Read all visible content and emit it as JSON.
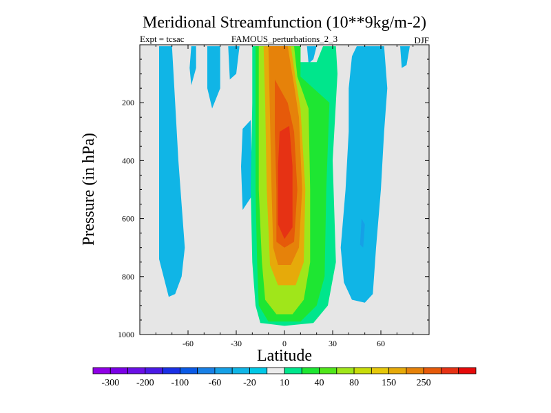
{
  "chart_data": {
    "type": "contour",
    "title": "Meridional Streamfunction (10**9kg/m-2)",
    "subtitle_left": "Expt = tcsac",
    "subtitle_center": "FAMOUS_perturbations_2_3",
    "subtitle_right": "DJF",
    "xlabel": "Latitude",
    "ylabel": "Pressure (in hPa)",
    "xlim": [
      -90,
      90
    ],
    "ylim": [
      1000,
      0
    ],
    "xticks": [
      -60,
      -30,
      0,
      30,
      60
    ],
    "xtick_labels": [
      "-60",
      "-30",
      "0",
      "30",
      "60"
    ],
    "yticks": [
      200,
      400,
      600,
      800,
      1000
    ],
    "ytick_labels": [
      "200",
      "400",
      "600",
      "800",
      "1000"
    ],
    "background_color": "#e6e6e6",
    "colorbar": {
      "colors": [
        "#8f00e6",
        "#7a00e6",
        "#6a10e6",
        "#4a1ae6",
        "#1a30e6",
        "#0b5ae6",
        "#1980e6",
        "#16a0e6",
        "#10b5e6",
        "#00c8e6",
        "#ebebeb",
        "#00e68c",
        "#1ee632",
        "#50e61a",
        "#a0e61a",
        "#c8dc0a",
        "#e6c80a",
        "#e6aa0a",
        "#e6820a",
        "#e65a0a",
        "#e63214",
        "#e60a0a"
      ],
      "labels": [
        "-300",
        "-200",
        "-100",
        "-60",
        "-20",
        "10",
        "40",
        "80",
        "150",
        "250"
      ]
    },
    "contour_regions": [
      {
        "name": "southern-hemisphere-cell",
        "sign": "negative",
        "level": "-20",
        "polygon": [
          [
            -78,
            5
          ],
          [
            -70,
            5
          ],
          [
            -68,
            200
          ],
          [
            -66,
            400
          ],
          [
            -62,
            700
          ],
          [
            -64,
            800
          ],
          [
            -68,
            860
          ],
          [
            -72,
            870
          ],
          [
            -78,
            740
          ],
          [
            -78,
            300
          ]
        ]
      },
      {
        "name": "southern-upper-filament",
        "sign": "negative",
        "level": "-20",
        "polygon": [
          [
            -58,
            5
          ],
          [
            -55,
            5
          ],
          [
            -55,
            80
          ],
          [
            -58,
            140
          ],
          [
            -59,
            80
          ]
        ]
      },
      {
        "name": "upper-filament-a",
        "sign": "negative",
        "level": "-20",
        "polygon": [
          [
            -48,
            5
          ],
          [
            -40,
            5
          ],
          [
            -40,
            150
          ],
          [
            -45,
            220
          ],
          [
            -48,
            150
          ]
        ]
      },
      {
        "name": "upper-filament-b",
        "sign": "negative",
        "level": "-20",
        "polygon": [
          [
            -35,
            5
          ],
          [
            -28,
            5
          ],
          [
            -30,
            100
          ],
          [
            -34,
            120
          ]
        ]
      },
      {
        "name": "mid-filament",
        "sign": "negative",
        "level": "-20",
        "polygon": [
          [
            -26,
            290
          ],
          [
            -21,
            260
          ],
          [
            -20,
            520
          ],
          [
            -26,
            570
          ],
          [
            -27,
            420
          ]
        ]
      },
      {
        "name": "northern-upper-filament",
        "sign": "negative",
        "level": "-20",
        "polygon": [
          [
            14,
            5
          ],
          [
            20,
            5
          ],
          [
            18,
            50
          ],
          [
            15,
            65
          ]
        ]
      },
      {
        "name": "far-north-filament",
        "sign": "negative",
        "level": "-20",
        "polygon": [
          [
            72,
            5
          ],
          [
            78,
            5
          ],
          [
            76,
            70
          ],
          [
            73,
            80
          ]
        ]
      },
      {
        "name": "northern-hemisphere-cell",
        "sign": "negative",
        "level": "-20",
        "polygon": [
          [
            45,
            5
          ],
          [
            62,
            5
          ],
          [
            64,
            150
          ],
          [
            62,
            300
          ],
          [
            60,
            500
          ],
          [
            57,
            700
          ],
          [
            55,
            860
          ],
          [
            50,
            890
          ],
          [
            42,
            880
          ],
          [
            37,
            820
          ],
          [
            35,
            700
          ],
          [
            38,
            500
          ],
          [
            40,
            300
          ],
          [
            40,
            150
          ],
          [
            42,
            40
          ]
        ]
      },
      {
        "name": "northern-cell-core",
        "sign": "negative",
        "level": "-60",
        "polygon": [
          [
            48,
            600
          ],
          [
            50,
            620
          ],
          [
            49,
            700
          ],
          [
            47,
            690
          ]
        ]
      },
      {
        "name": "hadley-cell",
        "sign": "positive",
        "level": "10",
        "polygon": [
          [
            -20,
            5
          ],
          [
            10,
            5
          ],
          [
            10,
            60
          ],
          [
            20,
            60
          ],
          [
            24,
            5
          ],
          [
            32,
            5
          ],
          [
            33,
            100
          ],
          [
            30,
            400
          ],
          [
            32,
            750
          ],
          [
            27,
            900
          ],
          [
            18,
            960
          ],
          [
            0,
            970
          ],
          [
            -15,
            960
          ],
          [
            -18,
            900
          ],
          [
            -20,
            750
          ],
          [
            -21,
            500
          ],
          [
            -20,
            200
          ]
        ]
      },
      {
        "name": "hadley-40",
        "sign": "positive",
        "level": "40",
        "polygon": [
          [
            -18,
            5
          ],
          [
            10,
            5
          ],
          [
            10,
            110
          ],
          [
            28,
            200
          ],
          [
            26,
            500
          ],
          [
            25,
            800
          ],
          [
            20,
            900
          ],
          [
            10,
            955
          ],
          [
            -10,
            955
          ],
          [
            -16,
            900
          ],
          [
            -17,
            750
          ],
          [
            -18,
            500
          ],
          [
            -18,
            200
          ]
        ]
      },
      {
        "name": "hadley-80",
        "sign": "positive",
        "level": "80",
        "polygon": [
          [
            -16,
            5
          ],
          [
            6,
            5
          ],
          [
            8,
            110
          ],
          [
            15,
            220
          ],
          [
            16,
            500
          ],
          [
            16,
            750
          ],
          [
            12,
            880
          ],
          [
            5,
            930
          ],
          [
            -5,
            930
          ],
          [
            -12,
            880
          ],
          [
            -14,
            750
          ],
          [
            -16,
            500
          ],
          [
            -16,
            200
          ]
        ]
      },
      {
        "name": "hadley-150",
        "sign": "positive",
        "level": "150",
        "polygon": [
          [
            -13,
            5
          ],
          [
            4,
            5
          ],
          [
            7,
            120
          ],
          [
            10,
            220
          ],
          [
            13,
            500
          ],
          [
            12,
            750
          ],
          [
            7,
            830
          ],
          [
            -4,
            830
          ],
          [
            -9,
            760
          ],
          [
            -11,
            500
          ],
          [
            -12,
            200
          ]
        ]
      },
      {
        "name": "hadley-200",
        "sign": "positive",
        "level": "200",
        "polygon": [
          [
            -10,
            5
          ],
          [
            2,
            5
          ],
          [
            6,
            140
          ],
          [
            9,
            250
          ],
          [
            11,
            500
          ],
          [
            9,
            700
          ],
          [
            4,
            760
          ],
          [
            -4,
            760
          ],
          [
            -7,
            700
          ],
          [
            -8,
            500
          ],
          [
            -9,
            250
          ]
        ]
      },
      {
        "name": "hadley-250",
        "sign": "positive",
        "level": "250",
        "polygon": [
          [
            -6,
            120
          ],
          [
            2,
            200
          ],
          [
            6,
            300
          ],
          [
            8,
            500
          ],
          [
            6,
            680
          ],
          [
            0,
            700
          ],
          [
            -5,
            680
          ],
          [
            -5,
            500
          ],
          [
            -6,
            300
          ]
        ]
      },
      {
        "name": "hadley-core",
        "sign": "positive",
        "level": "300",
        "polygon": [
          [
            -3,
            300
          ],
          [
            3,
            280
          ],
          [
            5,
            420
          ],
          [
            5,
            630
          ],
          [
            0,
            670
          ],
          [
            -4,
            620
          ],
          [
            -4,
            420
          ]
        ]
      }
    ]
  }
}
